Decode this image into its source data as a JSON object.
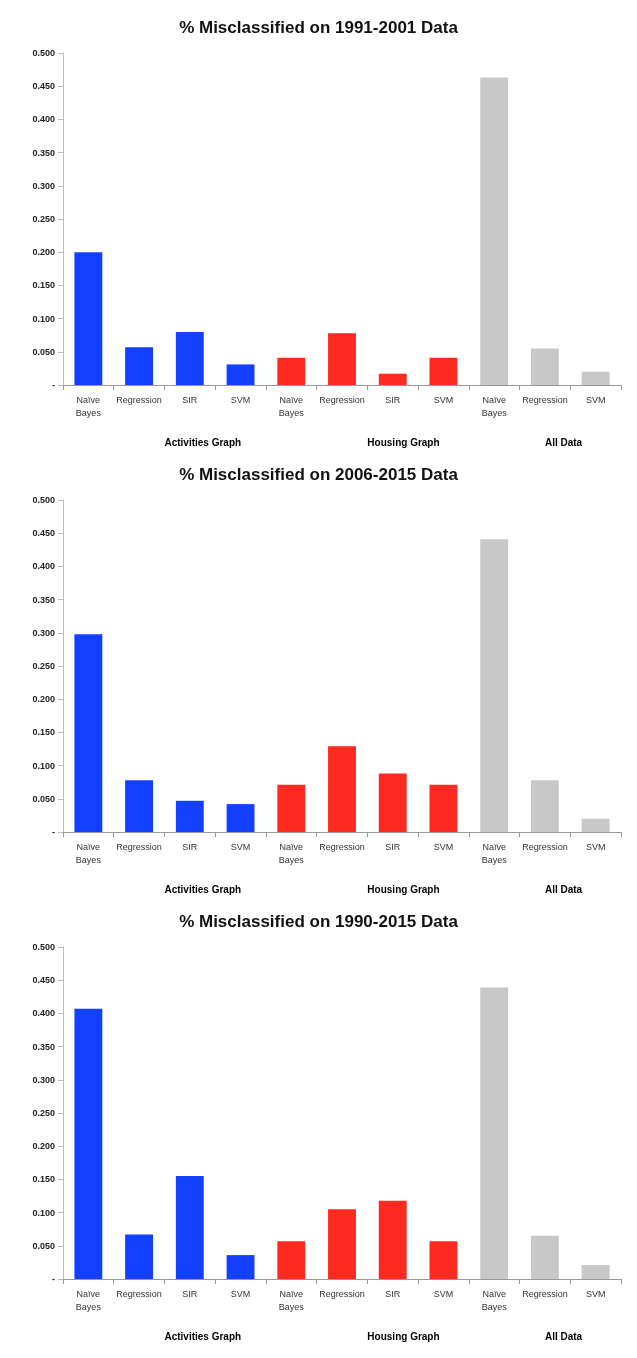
{
  "chart_data": [
    {
      "type": "bar",
      "title": "% Misclassified on 1991-2001 Data",
      "categories": [
        "Naïve Bayes",
        "Regression",
        "SIR",
        "SVM",
        "Naïve Bayes",
        "Regression",
        "SIR",
        "SVM",
        "Naïve Bayes",
        "Regression",
        "SVM"
      ],
      "values": [
        0.2,
        0.057,
        0.08,
        0.031,
        0.041,
        0.078,
        0.017,
        0.041,
        0.463,
        0.055,
        0.02
      ],
      "colors": [
        "#1340ff",
        "#1340ff",
        "#1340ff",
        "#1340ff",
        "#ff2a1f",
        "#ff2a1f",
        "#ff2a1f",
        "#ff2a1f",
        "#c8c8c8",
        "#c8c8c8",
        "#c8c8c8"
      ],
      "ylim": [
        0,
        0.5
      ],
      "yticks": [
        {
          "value": 0,
          "label": "-"
        },
        {
          "value": 0.05,
          "label": "0.050"
        },
        {
          "value": 0.1,
          "label": "0.100"
        },
        {
          "value": 0.15,
          "label": "0.150"
        },
        {
          "value": 0.2,
          "label": "0.200"
        },
        {
          "value": 0.25,
          "label": "0.250"
        },
        {
          "value": 0.3,
          "label": "0.300"
        },
        {
          "value": 0.35,
          "label": "0.350"
        },
        {
          "value": 0.4,
          "label": "0.400"
        },
        {
          "value": 0.45,
          "label": "0.450"
        },
        {
          "value": 0.5,
          "label": "0.500"
        }
      ],
      "annotations": [
        "Activities Graph",
        "Housing Graph",
        "All Data"
      ],
      "grid": false
    },
    {
      "type": "bar",
      "title": "% Misclassified on 2006-2015 Data",
      "categories": [
        "Naïve Bayes",
        "Regression",
        "SIR",
        "SVM",
        "Naïve Bayes",
        "Regression",
        "SIR",
        "SVM",
        "Naïve Bayes",
        "Regression",
        "SVM"
      ],
      "values": [
        0.298,
        0.078,
        0.047,
        0.042,
        0.071,
        0.129,
        0.088,
        0.071,
        0.441,
        0.078,
        0.02
      ],
      "colors": [
        "#1340ff",
        "#1340ff",
        "#1340ff",
        "#1340ff",
        "#ff2a1f",
        "#ff2a1f",
        "#ff2a1f",
        "#ff2a1f",
        "#c8c8c8",
        "#c8c8c8",
        "#c8c8c8"
      ],
      "ylim": [
        0,
        0.5
      ],
      "yticks": [
        {
          "value": 0,
          "label": "-"
        },
        {
          "value": 0.05,
          "label": "0.050"
        },
        {
          "value": 0.1,
          "label": "0.100"
        },
        {
          "value": 0.15,
          "label": "0.150"
        },
        {
          "value": 0.2,
          "label": "0.200"
        },
        {
          "value": 0.25,
          "label": "0.250"
        },
        {
          "value": 0.3,
          "label": "0.300"
        },
        {
          "value": 0.35,
          "label": "0.350"
        },
        {
          "value": 0.4,
          "label": "0.400"
        },
        {
          "value": 0.45,
          "label": "0.450"
        },
        {
          "value": 0.5,
          "label": "0.500"
        }
      ],
      "annotations": [
        "Activities Graph",
        "Housing Graph",
        "All Data"
      ],
      "grid": false
    },
    {
      "type": "bar",
      "title": "% Misclassified on 1990-2015 Data",
      "categories": [
        "Naïve Bayes",
        "Regression",
        "SIR",
        "SVM",
        "Naïve Bayes",
        "Regression",
        "SIR",
        "SVM",
        "Naïve Bayes",
        "Regression",
        "SVM"
      ],
      "values": [
        0.407,
        0.067,
        0.155,
        0.036,
        0.057,
        0.105,
        0.118,
        0.057,
        0.439,
        0.065,
        0.021
      ],
      "colors": [
        "#1340ff",
        "#1340ff",
        "#1340ff",
        "#1340ff",
        "#ff2a1f",
        "#ff2a1f",
        "#ff2a1f",
        "#ff2a1f",
        "#c8c8c8",
        "#c8c8c8",
        "#c8c8c8"
      ],
      "ylim": [
        0,
        0.5
      ],
      "yticks": [
        {
          "value": 0,
          "label": "-"
        },
        {
          "value": 0.05,
          "label": "0.050"
        },
        {
          "value": 0.1,
          "label": "0.100"
        },
        {
          "value": 0.15,
          "label": "0.150"
        },
        {
          "value": 0.2,
          "label": "0.200"
        },
        {
          "value": 0.25,
          "label": "0.250"
        },
        {
          "value": 0.3,
          "label": "0.300"
        },
        {
          "value": 0.35,
          "label": "0.350"
        },
        {
          "value": 0.4,
          "label": "0.400"
        },
        {
          "value": 0.45,
          "label": "0.450"
        },
        {
          "value": 0.5,
          "label": "0.500"
        }
      ],
      "annotations": [
        "Activities Graph",
        "Housing Graph",
        "All Data"
      ],
      "grid": false
    }
  ]
}
